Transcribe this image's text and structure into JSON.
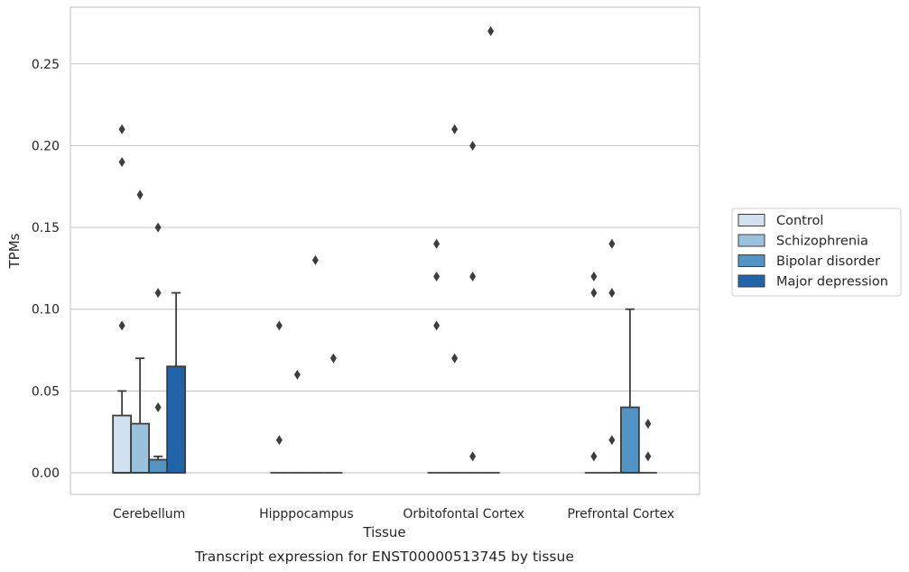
{
  "chart_data": {
    "type": "box",
    "caption": "Transcript expression for ENST00000513745 by tissue",
    "xlabel": "Tissue",
    "ylabel": "TPMs",
    "ylim": [
      -0.013,
      0.284
    ],
    "yticks": [
      0.0,
      0.05,
      0.1,
      0.15,
      0.2,
      0.25
    ],
    "ytick_labels": [
      "0.00",
      "0.05",
      "0.10",
      "0.15",
      "0.20",
      "0.25"
    ],
    "grid": "horizontal",
    "legend_position": "right",
    "categories": [
      "Cerebellum",
      "Hipppocampus",
      "Orbitofontal Cortex",
      "Prefrontal Cortex"
    ],
    "series": [
      {
        "name": "Control",
        "color": "#d1e1f0",
        "boxes": [
          {
            "q1": 0.0,
            "median": 0.0,
            "q3": 0.035,
            "whisker_low": 0.0,
            "whisker_high": 0.05,
            "outliers": [
              0.09,
              0.19,
              0.21
            ]
          },
          {
            "q1": 0.0,
            "median": 0.0,
            "q3": 0.0,
            "whisker_low": 0.0,
            "whisker_high": 0.0,
            "outliers": [
              0.02,
              0.09
            ]
          },
          {
            "q1": 0.0,
            "median": 0.0,
            "q3": 0.0,
            "whisker_low": 0.0,
            "whisker_high": 0.0,
            "outliers": [
              0.09,
              0.12,
              0.14
            ]
          },
          {
            "q1": 0.0,
            "median": 0.0,
            "q3": 0.0,
            "whisker_low": 0.0,
            "whisker_high": 0.0,
            "outliers": [
              0.01,
              0.11,
              0.12
            ]
          }
        ]
      },
      {
        "name": "Schizophrenia",
        "color": "#9ac2dd",
        "boxes": [
          {
            "q1": 0.0,
            "median": 0.0,
            "q3": 0.03,
            "whisker_low": 0.0,
            "whisker_high": 0.07,
            "outliers": [
              0.17
            ]
          },
          {
            "q1": 0.0,
            "median": 0.0,
            "q3": 0.0,
            "whisker_low": 0.0,
            "whisker_high": 0.0,
            "outliers": [
              0.06
            ]
          },
          {
            "q1": 0.0,
            "median": 0.0,
            "q3": 0.0,
            "whisker_low": 0.0,
            "whisker_high": 0.0,
            "outliers": [
              0.07,
              0.21
            ]
          },
          {
            "q1": 0.0,
            "median": 0.0,
            "q3": 0.0,
            "whisker_low": 0.0,
            "whisker_high": 0.0,
            "outliers": [
              0.02,
              0.11,
              0.14
            ]
          }
        ]
      },
      {
        "name": "Bipolar disorder",
        "color": "#5294c3",
        "boxes": [
          {
            "q1": 0.0,
            "median": 0.0,
            "q3": 0.008,
            "whisker_low": 0.0,
            "whisker_high": 0.01,
            "outliers": [
              0.04,
              0.11,
              0.15
            ]
          },
          {
            "q1": 0.0,
            "median": 0.0,
            "q3": 0.0,
            "whisker_low": 0.0,
            "whisker_high": 0.0,
            "outliers": [
              0.13
            ]
          },
          {
            "q1": 0.0,
            "median": 0.0,
            "q3": 0.0,
            "whisker_low": 0.0,
            "whisker_high": 0.0,
            "outliers": [
              0.01,
              0.12,
              0.2
            ]
          },
          {
            "q1": 0.0,
            "median": 0.0,
            "q3": 0.04,
            "whisker_low": 0.0,
            "whisker_high": 0.1,
            "outliers": []
          }
        ]
      },
      {
        "name": "Major depression",
        "color": "#2264a9",
        "boxes": [
          {
            "q1": 0.0,
            "median": 0.0,
            "q3": 0.065,
            "whisker_low": 0.0,
            "whisker_high": 0.11,
            "outliers": []
          },
          {
            "q1": 0.0,
            "median": 0.0,
            "q3": 0.0,
            "whisker_low": 0.0,
            "whisker_high": 0.0,
            "outliers": [
              0.07
            ]
          },
          {
            "q1": 0.0,
            "median": 0.0,
            "q3": 0.0,
            "whisker_low": 0.0,
            "whisker_high": 0.0,
            "outliers": [
              0.27
            ]
          },
          {
            "q1": 0.0,
            "median": 0.0,
            "q3": 0.0,
            "whisker_low": 0.0,
            "whisker_high": 0.0,
            "outliers": [
              0.01,
              0.03
            ]
          }
        ]
      }
    ]
  }
}
